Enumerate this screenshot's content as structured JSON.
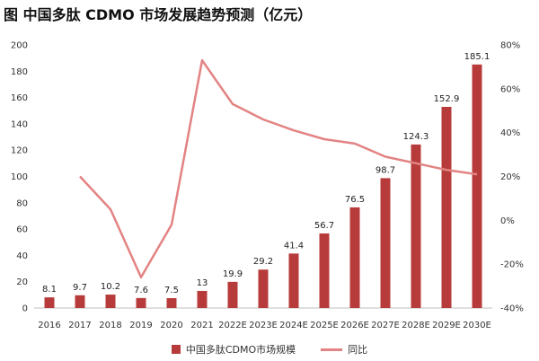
{
  "title": "图 中国多肽 CDMO 市场发展趋势预测（亿元）",
  "colors": {
    "bar": "#b83b3b",
    "line": "#e38383"
  },
  "chart_data": {
    "type": "bar",
    "categories": [
      "2016",
      "2017",
      "2018",
      "2019",
      "2020",
      "2021",
      "2022E",
      "2023E",
      "2024E",
      "2025E",
      "2026E",
      "2027E",
      "2028E",
      "2029E",
      "2030E"
    ],
    "series": [
      {
        "name": "中国多肽CDMO市场规模",
        "type": "bar",
        "axis": "left",
        "values": [
          8.1,
          9.7,
          10.2,
          7.6,
          7.5,
          13,
          19.9,
          29.2,
          41.4,
          56.7,
          76.5,
          98.7,
          124.3,
          152.9,
          185.1
        ],
        "labels": [
          "8.1",
          "9.7",
          "10.2",
          "7.6",
          "7.5",
          "13",
          "19.9",
          "29.2",
          "41.4",
          "56.7",
          "76.5",
          "98.7",
          "124.3",
          "152.9",
          "185.1"
        ]
      },
      {
        "name": "同比",
        "type": "line",
        "axis": "right",
        "values": [
          null,
          20,
          5,
          -26,
          -2,
          73,
          53,
          46,
          41,
          37,
          35,
          29,
          26,
          23,
          21
        ]
      }
    ],
    "left_axis": {
      "min": 0,
      "max": 200,
      "step": 20,
      "ticks": [
        "0",
        "20",
        "40",
        "60",
        "80",
        "100",
        "120",
        "140",
        "160",
        "180",
        "200"
      ]
    },
    "right_axis": {
      "min": -40,
      "max": 80,
      "step": 20,
      "ticks": [
        "-40%",
        "-20%",
        "0%",
        "20%",
        "40%",
        "60%",
        "80%"
      ]
    },
    "grid": false,
    "legend_position": "bottom"
  }
}
